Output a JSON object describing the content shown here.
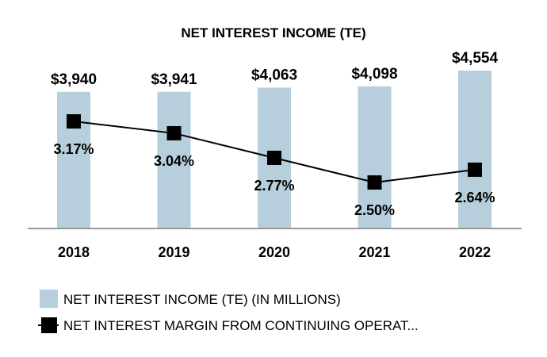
{
  "chart_data": {
    "type": "bar",
    "title": "NET INTEREST INCOME (TE)",
    "categories": [
      "2018",
      "2019",
      "2020",
      "2021",
      "2022"
    ],
    "series": [
      {
        "name": "NET INTEREST INCOME (TE) (IN MILLIONS)",
        "type": "bar",
        "values": [
          3940,
          3941,
          4063,
          4098,
          4554
        ],
        "labels": [
          "$3,940",
          "$3,941",
          "$4,063",
          "$4,098",
          "$4,554"
        ],
        "color": "#b7cfdc"
      },
      {
        "name": "NET INTEREST MARGIN FROM CONTINUING OPERAT...",
        "type": "line",
        "values": [
          3.17,
          3.04,
          2.77,
          2.5,
          2.64
        ],
        "labels": [
          "3.17%",
          "3.04%",
          "2.77%",
          "2.50%",
          "2.64%"
        ],
        "color": "#000000"
      }
    ],
    "legend_position": "bottom-left",
    "axis_color": "#9a9a9a",
    "grid": false
  }
}
